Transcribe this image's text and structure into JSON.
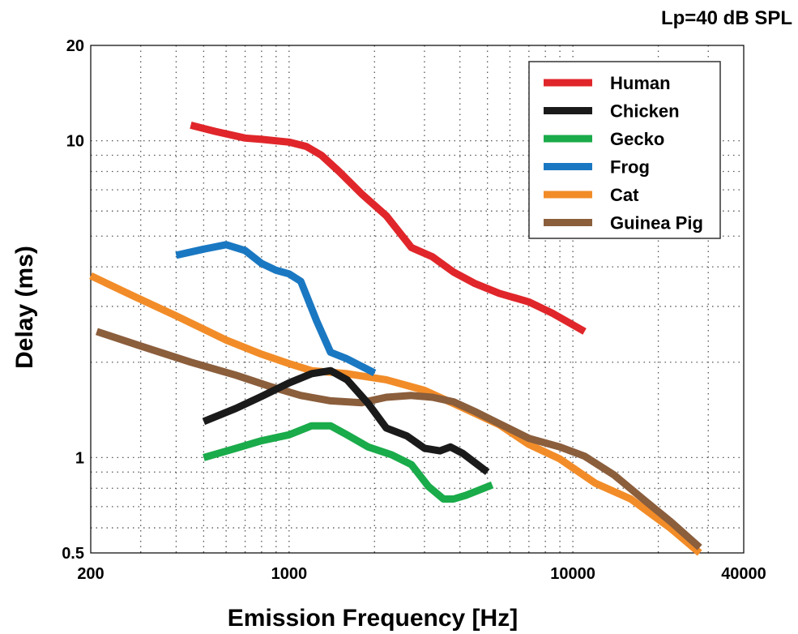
{
  "chart_data": {
    "type": "line",
    "title": "",
    "annotation": "Lp=40 dB SPL",
    "xlabel": "Emission Frequency [Hz]",
    "ylabel": "Delay (ms)",
    "xscale": "log",
    "yscale": "log",
    "xlim": [
      200,
      40000
    ],
    "ylim": [
      0.5,
      20
    ],
    "x_tick_labels": [
      {
        "value": 200,
        "label": "200"
      },
      {
        "value": 1000,
        "label": "1000"
      },
      {
        "value": 10000,
        "label": "10000"
      },
      {
        "value": 40000,
        "label": "40000"
      }
    ],
    "y_tick_labels": [
      {
        "value": 0.5,
        "label": "0.5"
      },
      {
        "value": 1,
        "label": "1"
      },
      {
        "value": 10,
        "label": "10"
      },
      {
        "value": 20,
        "label": "20"
      }
    ],
    "grid": true,
    "legend_position": "top-right",
    "series": [
      {
        "name": "Human",
        "color": "#e0262a",
        "x": [
          450,
          550,
          700,
          800,
          1000,
          1150,
          1300,
          1500,
          1800,
          2200,
          2700,
          3200,
          3800,
          4500,
          5500,
          7000,
          8500,
          11000
        ],
        "y": [
          11.2,
          10.7,
          10.2,
          10.1,
          9.9,
          9.6,
          9.0,
          8.0,
          6.8,
          5.8,
          4.6,
          4.3,
          3.85,
          3.55,
          3.3,
          3.1,
          2.85,
          2.5
        ]
      },
      {
        "name": "Chicken",
        "color": "#1a1a1a",
        "x": [
          500,
          650,
          800,
          1000,
          1200,
          1400,
          1600,
          1900,
          2200,
          2600,
          3000,
          3400,
          3700,
          4100,
          5000
        ],
        "y": [
          1.3,
          1.43,
          1.56,
          1.72,
          1.84,
          1.88,
          1.76,
          1.48,
          1.24,
          1.17,
          1.07,
          1.05,
          1.08,
          1.03,
          0.9
        ]
      },
      {
        "name": "Gecko",
        "color": "#1aab4a",
        "x": [
          500,
          650,
          800,
          1000,
          1200,
          1400,
          1600,
          1900,
          2300,
          2700,
          3100,
          3500,
          3800,
          4200,
          5200
        ],
        "y": [
          1.0,
          1.07,
          1.13,
          1.18,
          1.26,
          1.26,
          1.18,
          1.08,
          1.02,
          0.95,
          0.81,
          0.74,
          0.74,
          0.76,
          0.82
        ]
      },
      {
        "name": "Frog",
        "color": "#1a78c2",
        "x": [
          400,
          500,
          600,
          700,
          800,
          900,
          1000,
          1100,
          1250,
          1400,
          1600,
          2000
        ],
        "y": [
          4.35,
          4.55,
          4.7,
          4.5,
          4.1,
          3.9,
          3.8,
          3.6,
          2.7,
          2.15,
          2.05,
          1.85
        ]
      },
      {
        "name": "Cat",
        "color": "#f28c28",
        "x": [
          200,
          280,
          400,
          600,
          800,
          1000,
          1200,
          1600,
          2200,
          3000,
          4000,
          5500,
          7000,
          9000,
          12000,
          16000,
          22000,
          28000
        ],
        "y": [
          3.75,
          3.25,
          2.8,
          2.35,
          2.12,
          1.98,
          1.88,
          1.84,
          1.76,
          1.63,
          1.45,
          1.27,
          1.1,
          0.99,
          0.83,
          0.74,
          0.6,
          0.5
        ]
      },
      {
        "name": "Guinea Pig",
        "color": "#8b5e3c",
        "x": [
          210,
          300,
          450,
          650,
          850,
          1100,
          1400,
          1800,
          2200,
          2700,
          3200,
          3800,
          4500,
          5500,
          7000,
          9000,
          11000,
          14000,
          18000,
          22000,
          28000
        ],
        "y": [
          2.5,
          2.25,
          2.0,
          1.82,
          1.68,
          1.57,
          1.51,
          1.49,
          1.55,
          1.57,
          1.55,
          1.5,
          1.4,
          1.28,
          1.15,
          1.08,
          1.01,
          0.88,
          0.73,
          0.63,
          0.52
        ]
      }
    ]
  }
}
